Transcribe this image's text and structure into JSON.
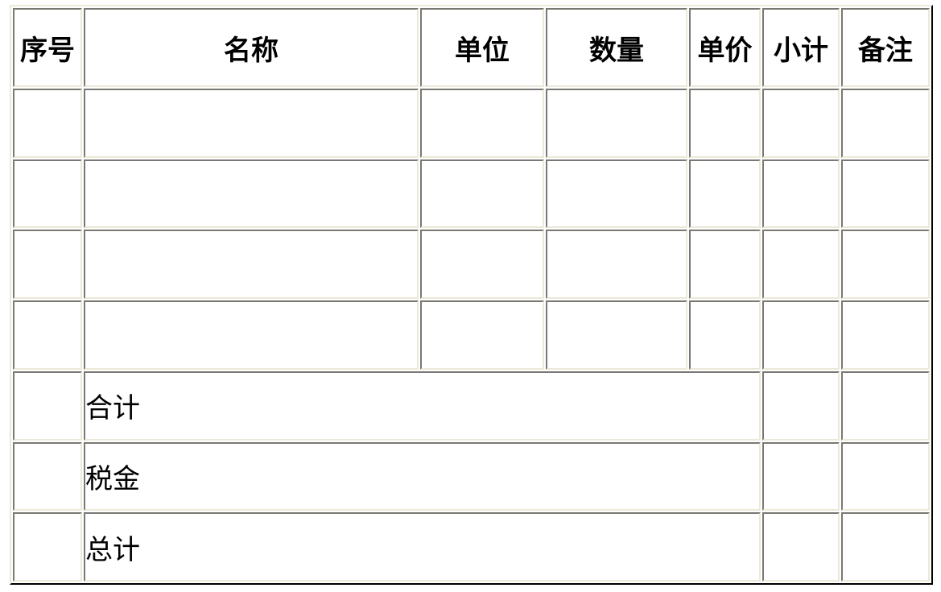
{
  "table": {
    "headers": [
      "序号",
      "名称",
      "单位",
      "数量",
      "单价",
      "小计",
      "备注"
    ],
    "empty_rows": 4,
    "summary_rows": [
      {
        "label": "合计"
      },
      {
        "label": "税金"
      },
      {
        "label": "总计"
      }
    ]
  }
}
